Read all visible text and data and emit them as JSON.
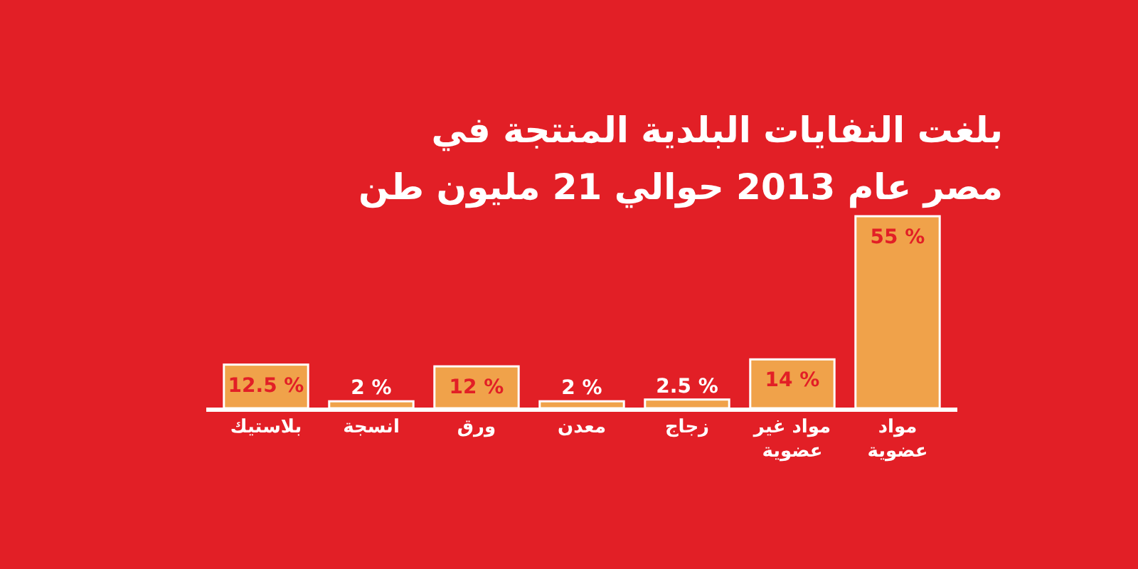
{
  "chart_data": {
    "type": "bar",
    "title": "بلغت النفايات البلدية المنتجة في مصر عام 2013 حوالي 21 مليون طن",
    "categories": [
      "بلاستيك",
      "انسجة",
      "ورق",
      "معدن",
      "زجاج",
      "مواد غير عضوية",
      "مواد عضوية"
    ],
    "values": [
      12.5,
      2,
      12,
      2,
      2.5,
      14,
      55
    ],
    "value_labels": [
      "12.5 %",
      "2 %",
      "12 %",
      "2 %",
      "2.5 %",
      "14 %",
      "55 %"
    ],
    "color": "#f0a24a"
  }
}
